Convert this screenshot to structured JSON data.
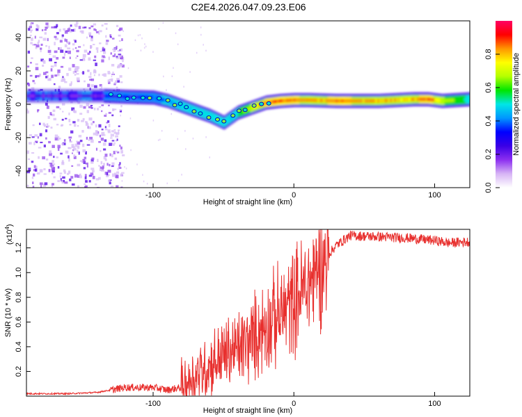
{
  "figure_title": "C2E4.2026.047.09.23.E06",
  "colors": {
    "snr_line": "#e8302e",
    "frame": "#000000"
  },
  "chart_data": [
    {
      "type": "heatmap",
      "title": "",
      "xlabel": "Height of straight line (km)",
      "ylabel": "Frequency (Hz)",
      "xlim": [
        -190,
        125
      ],
      "ylim": [
        -50,
        50
      ],
      "x_ticks": [
        -100,
        0,
        100
      ],
      "y_ticks": [
        -40,
        -20,
        0,
        20,
        40
      ],
      "colorbar": {
        "label": "Normalized spectral amplitude",
        "range": [
          0,
          1
        ],
        "ticks": [
          "0.0",
          "0.2",
          "0.4",
          "0.6",
          "0.8"
        ],
        "colormap": [
          "#ffffff",
          "#d7b4f5",
          "#8c2ff0",
          "#3a00e6",
          "#0000ff",
          "#0096ff",
          "#00e6e6",
          "#00e600",
          "#b4ff00",
          "#ffff00",
          "#ff9600",
          "#ff0000",
          "#ff0064"
        ]
      },
      "ridge": {
        "x": [
          -135,
          -120,
          -100,
          -90,
          -80,
          -70,
          -60,
          -50,
          -45,
          -40,
          -30,
          -20,
          -10,
          0,
          10,
          30,
          60,
          85,
          95,
          105,
          125
        ],
        "freq": [
          5,
          4.5,
          4,
          2,
          -1,
          -4,
          -7,
          -11,
          -8,
          -5,
          -2,
          1,
          2,
          2.5,
          2.5,
          2,
          2,
          3,
          3,
          2,
          3
        ],
        "amplitude": [
          0.3,
          0.3,
          0.35,
          0.4,
          0.45,
          0.5,
          0.5,
          0.5,
          0.45,
          0.55,
          0.7,
          0.85,
          0.9,
          0.85,
          0.8,
          0.85,
          0.8,
          0.8,
          0.9,
          0.7,
          0.5
        ]
      },
      "noise_region_x": [
        -190,
        -130
      ]
    },
    {
      "type": "line",
      "title": "",
      "xlabel": "Height of straight line (km)",
      "ylabel": "SNR (10 * v/v)",
      "y_exponent_label": "(x10",
      "y_exponent_power": "4",
      "y_exponent_close": ")",
      "xlim": [
        -190,
        125
      ],
      "ylim": [
        0,
        1.35
      ],
      "x_ticks": [
        -100,
        0,
        100
      ],
      "y_ticks": [
        "0.2",
        "0.4",
        "0.6",
        "0.8",
        "1.0",
        "1.2"
      ],
      "series": [
        {
          "name": "SNR",
          "x": [
            -190,
            -160,
            -140,
            -120,
            -100,
            -90,
            -80,
            -70,
            -60,
            -50,
            -40,
            -30,
            -20,
            -10,
            0,
            10,
            20,
            30,
            40,
            60,
            80,
            100,
            110,
            125
          ],
          "y": [
            0.02,
            0.02,
            0.03,
            0.07,
            0.07,
            0.05,
            0.07,
            0.17,
            0.25,
            0.33,
            0.38,
            0.45,
            0.58,
            0.65,
            0.78,
            0.9,
            1.08,
            1.22,
            1.3,
            1.29,
            1.28,
            1.26,
            1.24,
            1.25
          ]
        }
      ]
    }
  ]
}
